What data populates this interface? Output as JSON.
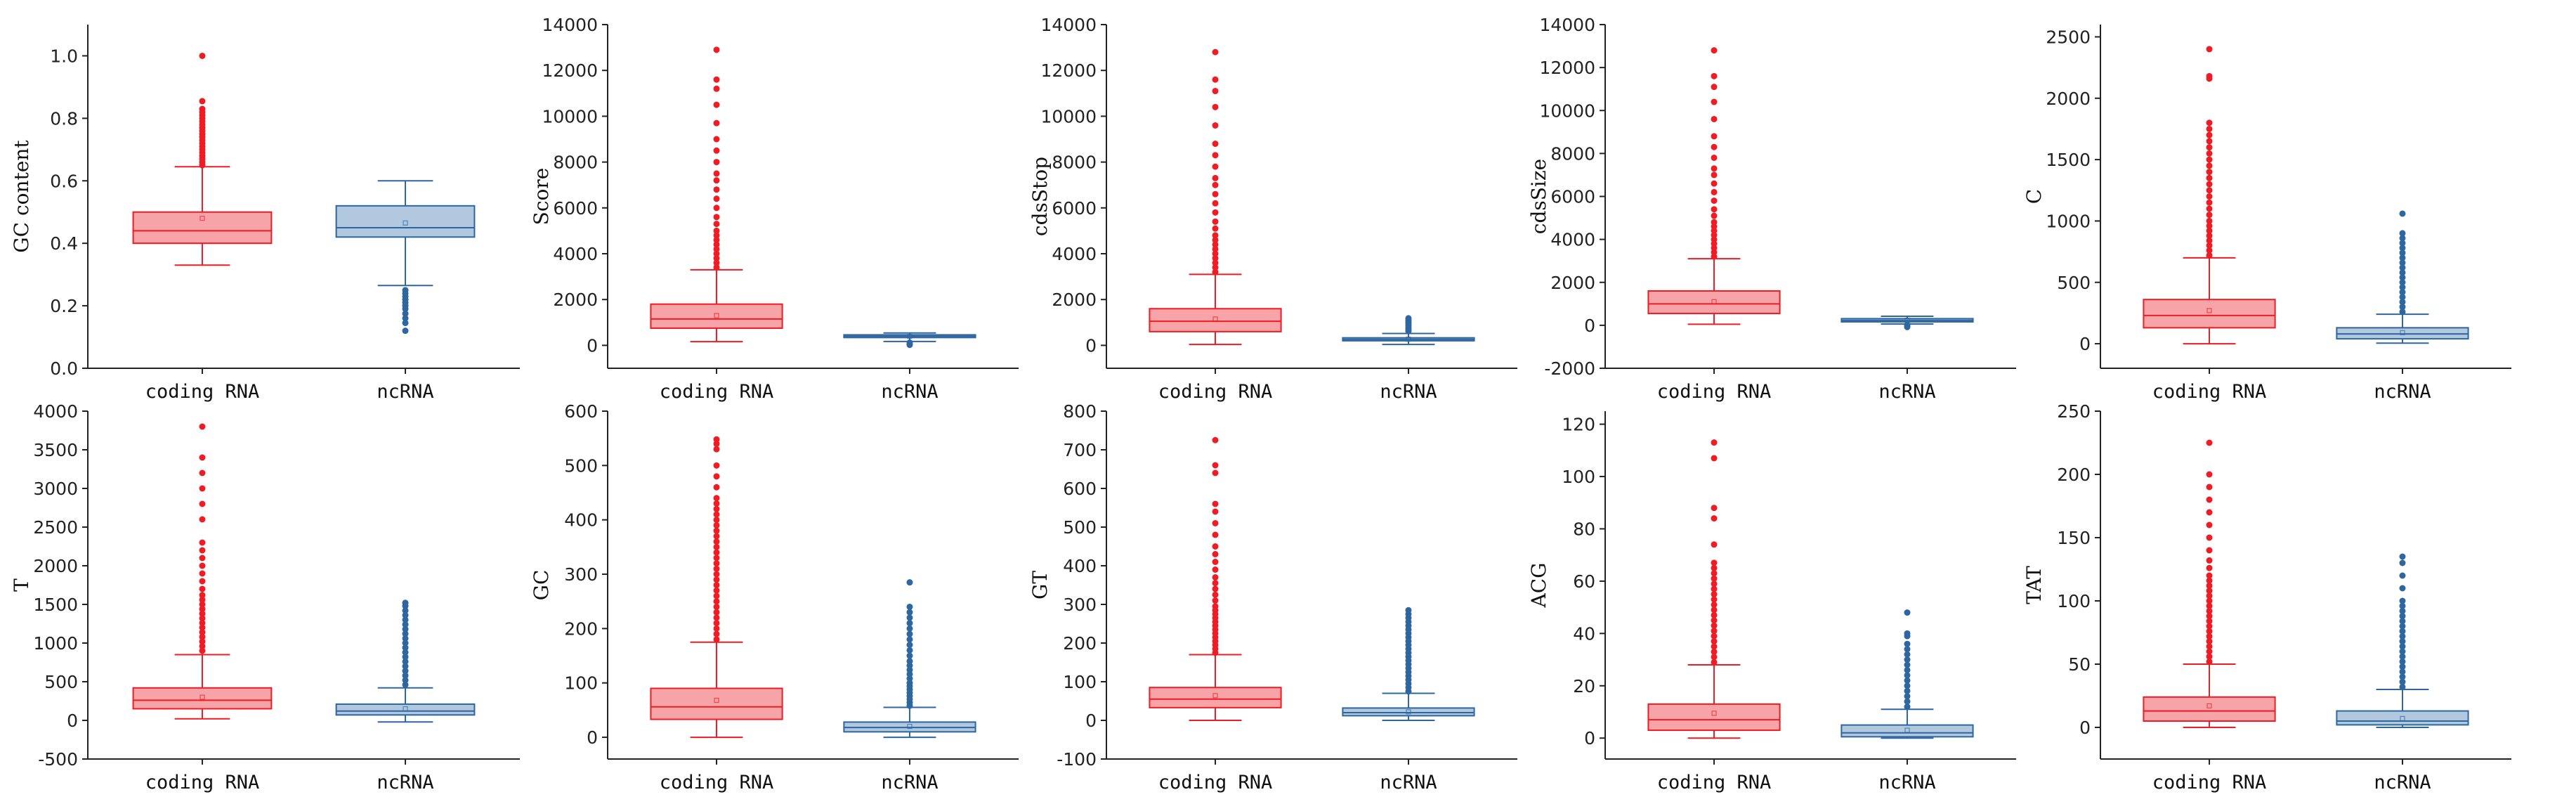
{
  "chart_data": [
    {
      "type": "box",
      "ylabel": "GC content",
      "ylim": [
        0,
        1.1
      ],
      "yticks": [
        0.0,
        0.2,
        0.4,
        0.6,
        0.8,
        1.0
      ],
      "tick_format": "1",
      "categories": [
        "coding RNA",
        "ncRNA"
      ],
      "boxes": [
        {
          "name": "coding RNA",
          "color": "#ee1c24",
          "fill": "#f6a4a8",
          "whisker_low": 0.33,
          "q1": 0.4,
          "median": 0.44,
          "q3": 0.5,
          "whisker_high": 0.645,
          "mean": 0.48,
          "outliers_low": [],
          "outliers_high": [
            0.65,
            0.66,
            0.67,
            0.68,
            0.69,
            0.7,
            0.71,
            0.72,
            0.73,
            0.74,
            0.75,
            0.76,
            0.77,
            0.78,
            0.79,
            0.8,
            0.81,
            0.82,
            0.83,
            0.855,
            1.0
          ]
        },
        {
          "name": "ncRNA",
          "color": "#2e66a0",
          "fill": "#b2c8de",
          "whisker_low": 0.265,
          "q1": 0.42,
          "median": 0.45,
          "q3": 0.52,
          "whisker_high": 0.6,
          "mean": 0.465,
          "outliers_low": [
            0.25,
            0.24,
            0.23,
            0.22,
            0.21,
            0.2,
            0.19,
            0.175,
            0.16,
            0.145,
            0.12
          ],
          "outliers_high": []
        }
      ]
    },
    {
      "type": "box",
      "ylabel": "Score",
      "ylim": [
        -1000,
        14000
      ],
      "yticks": [
        0,
        2000,
        4000,
        6000,
        8000,
        10000,
        12000,
        14000
      ],
      "tick_format": "0",
      "categories": [
        "coding RNA",
        "ncRNA"
      ],
      "boxes": [
        {
          "name": "coding RNA",
          "color": "#ee1c24",
          "fill": "#f6a4a8",
          "whisker_low": 160,
          "q1": 750,
          "median": 1150,
          "q3": 1800,
          "whisker_high": 3300,
          "mean": 1300,
          "outliers_low": [],
          "outliers_high": [
            3400,
            3600,
            3800,
            4000,
            4200,
            4400,
            4600,
            4800,
            5000,
            5300,
            5600,
            6000,
            6400,
            6800,
            7200,
            7500,
            8000,
            8500,
            9000,
            9700,
            10500,
            11200,
            11600,
            12900
          ]
        },
        {
          "name": "ncRNA",
          "color": "#2e66a0",
          "fill": "#b2c8de",
          "whisker_low": 170,
          "q1": 340,
          "median": 400,
          "q3": 460,
          "whisker_high": 540,
          "mean": 390,
          "outliers_low": [
            120,
            60,
            20
          ],
          "outliers_high": []
        }
      ]
    },
    {
      "type": "box",
      "ylabel": "cdsStop",
      "ylim": [
        -1000,
        14000
      ],
      "yticks": [
        0,
        2000,
        4000,
        6000,
        8000,
        10000,
        12000,
        14000
      ],
      "tick_format": "0",
      "categories": [
        "coding RNA",
        "ncRNA"
      ],
      "boxes": [
        {
          "name": "coding RNA",
          "color": "#ee1c24",
          "fill": "#f6a4a8",
          "whisker_low": 40,
          "q1": 600,
          "median": 1050,
          "q3": 1600,
          "whisker_high": 3100,
          "mean": 1150,
          "outliers_low": [],
          "outliers_high": [
            3200,
            3400,
            3600,
            3800,
            4000,
            4200,
            4400,
            4600,
            4800,
            5100,
            5400,
            5800,
            6200,
            6600,
            7000,
            7300,
            7800,
            8300,
            8800,
            9600,
            10400,
            11100,
            11600,
            12800
          ]
        },
        {
          "name": "ncRNA",
          "color": "#2e66a0",
          "fill": "#b2c8de",
          "whisker_low": 40,
          "q1": 200,
          "median": 260,
          "q3": 330,
          "whisker_high": 520,
          "mean": 270,
          "outliers_low": [],
          "outliers_high": [
            620,
            700,
            780,
            860,
            940,
            1020,
            1100,
            1180
          ]
        }
      ]
    },
    {
      "type": "box",
      "ylabel": "cdsSize",
      "ylim": [
        -2000,
        14000
      ],
      "yticks": [
        -2000,
        0,
        2000,
        4000,
        6000,
        8000,
        10000,
        12000,
        14000
      ],
      "tick_format": "0",
      "categories": [
        "coding RNA",
        "ncRNA"
      ],
      "boxes": [
        {
          "name": "coding RNA",
          "color": "#ee1c24",
          "fill": "#f6a4a8",
          "whisker_low": 50,
          "q1": 550,
          "median": 1000,
          "q3": 1600,
          "whisker_high": 3100,
          "mean": 1100,
          "outliers_low": [],
          "outliers_high": [
            3200,
            3400,
            3600,
            3800,
            4000,
            4200,
            4400,
            4600,
            4800,
            5100,
            5400,
            5800,
            6200,
            6600,
            7000,
            7300,
            7800,
            8300,
            8800,
            9600,
            10400,
            11100,
            11600,
            12800
          ]
        },
        {
          "name": "ncRNA",
          "color": "#2e66a0",
          "fill": "#b2c8de",
          "whisker_low": 60,
          "q1": 160,
          "median": 230,
          "q3": 310,
          "whisker_high": 420,
          "mean": 240,
          "outliers_low": [
            20,
            -30,
            -80
          ],
          "outliers_high": []
        }
      ]
    },
    {
      "type": "box",
      "ylabel": "C",
      "ylim": [
        -200,
        2600
      ],
      "yticks": [
        0,
        500,
        1000,
        1500,
        2000,
        2500
      ],
      "tick_format": "0",
      "categories": [
        "coding RNA",
        "ncRNA"
      ],
      "boxes": [
        {
          "name": "coding RNA",
          "color": "#ee1c24",
          "fill": "#f6a4a8",
          "whisker_low": 0,
          "q1": 130,
          "median": 230,
          "q3": 360,
          "whisker_high": 700,
          "mean": 270,
          "outliers_low": [],
          "outliers_high": [
            720,
            760,
            800,
            840,
            880,
            920,
            960,
            1000,
            1050,
            1100,
            1150,
            1200,
            1250,
            1300,
            1350,
            1400,
            1450,
            1500,
            1550,
            1600,
            1650,
            1700,
            1750,
            1800,
            2160,
            2180,
            2400
          ]
        },
        {
          "name": "ncRNA",
          "color": "#2e66a0",
          "fill": "#b2c8de",
          "whisker_low": 5,
          "q1": 40,
          "median": 80,
          "q3": 130,
          "whisker_high": 240,
          "mean": 90,
          "outliers_low": [],
          "outliers_high": [
            260,
            300,
            340,
            380,
            420,
            460,
            500,
            540,
            580,
            620,
            660,
            700,
            740,
            780,
            820,
            860,
            900,
            1060
          ]
        }
      ]
    },
    {
      "type": "box",
      "ylabel": "T",
      "ylim": [
        -500,
        4000
      ],
      "yticks": [
        -500,
        0,
        500,
        1000,
        1500,
        2000,
        2500,
        3000,
        3500,
        4000
      ],
      "tick_format": "0",
      "categories": [
        "coding RNA",
        "ncRNA"
      ],
      "boxes": [
        {
          "name": "coding RNA",
          "color": "#ee1c24",
          "fill": "#f6a4a8",
          "whisker_low": 20,
          "q1": 150,
          "median": 260,
          "q3": 420,
          "whisker_high": 850,
          "mean": 300,
          "outliers_low": [],
          "outliers_high": [
            900,
            960,
            1020,
            1080,
            1140,
            1200,
            1260,
            1320,
            1380,
            1440,
            1500,
            1560,
            1620,
            1700,
            1800,
            1900,
            2000,
            2100,
            2200,
            2300,
            2600,
            2800,
            3000,
            3200,
            3400,
            3800
          ]
        },
        {
          "name": "ncRNA",
          "color": "#2e66a0",
          "fill": "#b2c8de",
          "whisker_low": -20,
          "q1": 70,
          "median": 120,
          "q3": 210,
          "whisker_high": 420,
          "mean": 150,
          "outliers_low": [],
          "outliers_high": [
            460,
            520,
            580,
            640,
            700,
            760,
            820,
            880,
            940,
            1000,
            1060,
            1120,
            1180,
            1240,
            1300,
            1360,
            1420,
            1480,
            1520
          ]
        }
      ]
    },
    {
      "type": "box",
      "ylabel": "GC",
      "ylim": [
        -40,
        600
      ],
      "yticks": [
        0,
        100,
        200,
        300,
        400,
        500,
        600
      ],
      "tick_format": "0",
      "categories": [
        "coding RNA",
        "ncRNA"
      ],
      "boxes": [
        {
          "name": "coding RNA",
          "color": "#ee1c24",
          "fill": "#f6a4a8",
          "whisker_low": 0,
          "q1": 33,
          "median": 56,
          "q3": 90,
          "whisker_high": 175,
          "mean": 68,
          "outliers_low": [],
          "outliers_high": [
            180,
            190,
            200,
            210,
            220,
            230,
            240,
            250,
            260,
            270,
            280,
            290,
            300,
            310,
            320,
            330,
            340,
            350,
            360,
            370,
            380,
            390,
            400,
            410,
            420,
            430,
            440,
            460,
            480,
            500,
            530,
            540,
            548
          ]
        },
        {
          "name": "ncRNA",
          "color": "#2e66a0",
          "fill": "#b2c8de",
          "whisker_low": 0,
          "q1": 10,
          "median": 18,
          "q3": 28,
          "whisker_high": 55,
          "mean": 20,
          "outliers_low": [],
          "outliers_high": [
            58,
            64,
            70,
            76,
            82,
            88,
            94,
            100,
            108,
            116,
            124,
            132,
            140,
            150,
            160,
            170,
            180,
            190,
            200,
            210,
            220,
            230,
            240,
            285
          ]
        }
      ]
    },
    {
      "type": "box",
      "ylabel": "GT",
      "ylim": [
        -100,
        800
      ],
      "yticks": [
        -100,
        0,
        100,
        200,
        300,
        400,
        500,
        600,
        700,
        800
      ],
      "tick_format": "0",
      "categories": [
        "coding RNA",
        "ncRNA"
      ],
      "boxes": [
        {
          "name": "coding RNA",
          "color": "#ee1c24",
          "fill": "#f6a4a8",
          "whisker_low": 0,
          "q1": 33,
          "median": 55,
          "q3": 85,
          "whisker_high": 170,
          "mean": 64,
          "outliers_low": [],
          "outliers_high": [
            175,
            185,
            195,
            205,
            215,
            225,
            235,
            245,
            255,
            265,
            275,
            285,
            295,
            310,
            325,
            340,
            355,
            370,
            390,
            410,
            430,
            450,
            480,
            510,
            540,
            560,
            640,
            660,
            725
          ]
        },
        {
          "name": "ncRNA",
          "color": "#2e66a0",
          "fill": "#b2c8de",
          "whisker_low": 0,
          "q1": 12,
          "median": 20,
          "q3": 32,
          "whisker_high": 70,
          "mean": 22,
          "outliers_low": [],
          "outliers_high": [
            75,
            85,
            95,
            105,
            115,
            125,
            135,
            145,
            155,
            165,
            175,
            185,
            195,
            205,
            215,
            225,
            235,
            245,
            255,
            265,
            275,
            285
          ]
        }
      ]
    },
    {
      "type": "box",
      "ylabel": "ACG",
      "ylim": [
        -8,
        125
      ],
      "yticks": [
        0,
        20,
        40,
        60,
        80,
        100,
        120
      ],
      "tick_format": "0",
      "categories": [
        "coding RNA",
        "ncRNA"
      ],
      "boxes": [
        {
          "name": "coding RNA",
          "color": "#ee1c24",
          "fill": "#f6a4a8",
          "whisker_low": 0,
          "q1": 3,
          "median": 7,
          "q3": 13,
          "whisker_high": 28,
          "mean": 9.5,
          "outliers_low": [],
          "outliers_high": [
            29,
            31,
            33,
            35,
            37,
            39,
            41,
            43,
            45,
            47,
            49,
            51,
            53,
            55,
            57,
            59,
            61,
            63,
            65,
            67,
            74,
            84,
            88,
            107,
            113
          ]
        },
        {
          "name": "ncRNA",
          "color": "#2e66a0",
          "fill": "#b2c8de",
          "whisker_low": 0,
          "q1": 0.5,
          "median": 2,
          "q3": 5,
          "whisker_high": 11,
          "mean": 3,
          "outliers_low": [],
          "outliers_high": [
            12,
            14,
            16,
            18,
            20,
            22,
            24,
            26,
            28,
            30,
            32,
            34,
            36,
            39,
            40,
            48
          ]
        }
      ]
    },
    {
      "type": "box",
      "ylabel": "TAT",
      "ylim": [
        -25,
        250
      ],
      "yticks": [
        0,
        50,
        100,
        150,
        200,
        250
      ],
      "tick_format": "0",
      "categories": [
        "coding RNA",
        "ncRNA"
      ],
      "boxes": [
        {
          "name": "coding RNA",
          "color": "#ee1c24",
          "fill": "#f6a4a8",
          "whisker_low": 0,
          "q1": 5,
          "median": 13,
          "q3": 24,
          "whisker_high": 50,
          "mean": 17,
          "outliers_low": [],
          "outliers_high": [
            52,
            56,
            60,
            64,
            68,
            72,
            76,
            80,
            84,
            88,
            92,
            96,
            100,
            104,
            108,
            112,
            116,
            120,
            126,
            132,
            140,
            150,
            160,
            170,
            180,
            190,
            200,
            225
          ]
        },
        {
          "name": "ncRNA",
          "color": "#2e66a0",
          "fill": "#b2c8de",
          "whisker_low": 0,
          "q1": 2,
          "median": 5,
          "q3": 13,
          "whisker_high": 30,
          "mean": 7,
          "outliers_low": [],
          "outliers_high": [
            32,
            36,
            40,
            44,
            48,
            52,
            56,
            60,
            64,
            68,
            72,
            76,
            80,
            84,
            88,
            92,
            96,
            100,
            110,
            120,
            130,
            135
          ]
        }
      ]
    }
  ]
}
